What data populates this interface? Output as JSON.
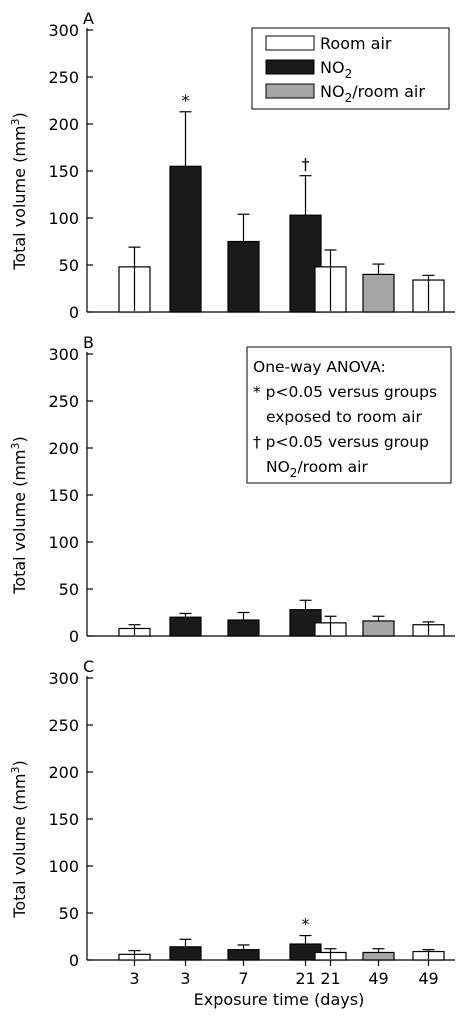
{
  "figure": {
    "xlabel": "Exposure time (days)",
    "ylabel_parts": [
      "Total volume (mm",
      "3",
      ")"
    ],
    "legend": [
      {
        "label": "Room air",
        "label_sub": "",
        "label_tail": "",
        "color": "#ffffff"
      },
      {
        "label": "NO",
        "label_sub": "2",
        "label_tail": "",
        "color": "#1a1a1a"
      },
      {
        "label": "NO",
        "label_sub": "2",
        "label_tail": "/room air",
        "color": "#a6a6a6"
      }
    ],
    "anova": {
      "title": "One-way ANOVA:",
      "line1": "* p<0.05 versus groups",
      "line2": "exposed to room air",
      "line3": "† p<0.05 versus group",
      "line4_a": "NO",
      "line4_sub": "2",
      "line4_b": "/room air"
    },
    "colors": {
      "room_air": "#ffffff",
      "no2": "#1a1a1a",
      "no2_room_air": "#a6a6a6"
    }
  },
  "chart_data": [
    {
      "panel": "A",
      "type": "bar",
      "categories": [
        "3",
        "3",
        "7",
        "21",
        "21",
        "49",
        "49"
      ],
      "groups": [
        "room_air",
        "no2",
        "no2",
        "no2",
        "room_air",
        "no2_room_air",
        "room_air"
      ],
      "values": [
        48,
        155,
        75,
        103,
        48,
        40,
        34
      ],
      "errors": [
        21,
        58,
        29,
        42,
        18,
        11,
        5
      ],
      "annotations": [
        "",
        "*",
        "",
        "†",
        "",
        "",
        ""
      ],
      "ylim": [
        0,
        300
      ],
      "yticks": [
        0,
        50,
        100,
        150,
        200,
        250,
        300
      ],
      "ylabel": "Total volume (mm3)",
      "legend_position": "top-right"
    },
    {
      "panel": "B",
      "type": "bar",
      "categories": [
        "3",
        "3",
        "7",
        "21",
        "21",
        "49",
        "49"
      ],
      "groups": [
        "room_air",
        "no2",
        "no2",
        "no2",
        "room_air",
        "no2_room_air",
        "room_air"
      ],
      "values": [
        8,
        20,
        17,
        28,
        14,
        16,
        12
      ],
      "errors": [
        4,
        4,
        8,
        10,
        7,
        5,
        3
      ],
      "annotations": [
        "",
        "",
        "",
        "",
        "",
        "",
        ""
      ],
      "ylim": [
        0,
        300
      ],
      "yticks": [
        0,
        50,
        100,
        150,
        200,
        250,
        300
      ],
      "ylabel": "Total volume (mm3)"
    },
    {
      "panel": "C",
      "type": "bar",
      "categories": [
        "3",
        "3",
        "7",
        "21",
        "21",
        "49",
        "49"
      ],
      "groups": [
        "room_air",
        "no2",
        "no2",
        "no2",
        "room_air",
        "no2_room_air",
        "room_air"
      ],
      "values": [
        6,
        14,
        11,
        17,
        8,
        8,
        9
      ],
      "errors": [
        4,
        8,
        5,
        9,
        4,
        4,
        2
      ],
      "annotations": [
        "",
        "",
        "",
        "*",
        "",
        "",
        ""
      ],
      "ylim": [
        0,
        300
      ],
      "yticks": [
        0,
        50,
        100,
        150,
        200,
        250,
        300
      ],
      "ylabel": "Total volume (mm3)",
      "xlabel": "Exposure time (days)"
    }
  ]
}
